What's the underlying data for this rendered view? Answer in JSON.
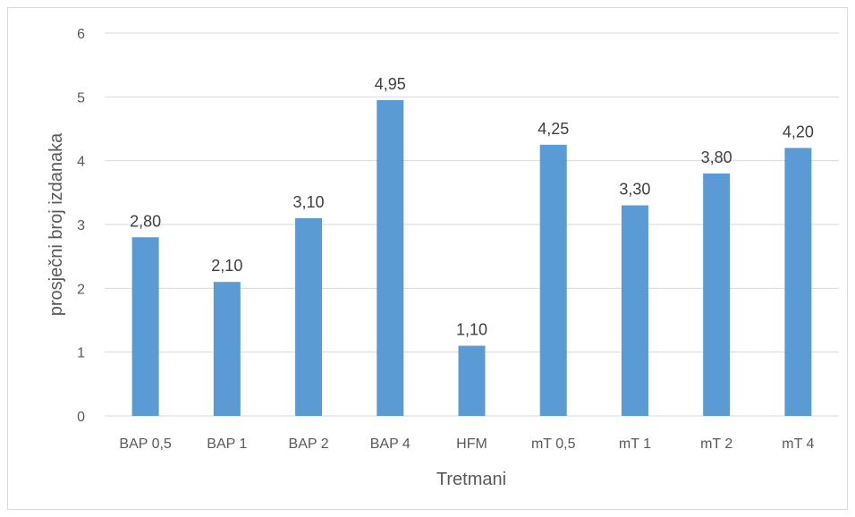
{
  "chart_data": {
    "type": "bar",
    "title": "",
    "xlabel": "Tretmani",
    "ylabel": "prosječni broj izdanaka",
    "categories": [
      "BAP 0,5",
      "BAP 1",
      "BAP 2",
      "BAP 4",
      "HFM",
      "mT 0,5",
      "mT 1",
      "mT 2",
      "mT 4"
    ],
    "values": [
      2.8,
      2.1,
      3.1,
      4.95,
      1.1,
      4.25,
      3.3,
      3.8,
      4.2
    ],
    "data_labels": [
      "2,80",
      "2,10",
      "3,10",
      "4,95",
      "1,10",
      "4,25",
      "3,30",
      "3,80",
      "4,20"
    ],
    "yticks": [
      "0",
      "1",
      "2",
      "3",
      "4",
      "5",
      "6"
    ],
    "ylim": [
      0,
      6
    ],
    "grid": true,
    "legend": "none",
    "colors": {
      "bar": "#5b9bd5",
      "grid": "#d9d9d9",
      "border": "#d9d9d9"
    }
  }
}
